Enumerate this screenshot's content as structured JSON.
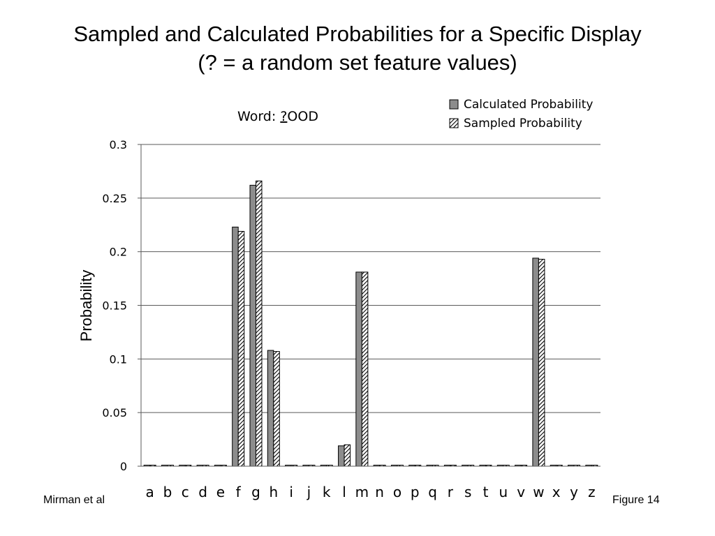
{
  "slide": {
    "title_line1": "Sampled and Calculated Probabilities for a Specific Display",
    "title_line2": "(? = a random set feature values)",
    "footer_left": "Mirman et al",
    "footer_right": "Figure 14"
  },
  "chart_data": {
    "type": "bar",
    "title_prefix": "Word: ",
    "title_marked": "?",
    "title_suffix": "OOD",
    "ylabel": "Probability",
    "xlabel": "",
    "ylim": [
      0,
      0.3
    ],
    "yticks": [
      "0",
      "0.05",
      "0.1",
      "0.15",
      "0.2",
      "0.25",
      "0.3"
    ],
    "ytick_values": [
      0,
      0.05,
      0.1,
      0.15,
      0.2,
      0.25,
      0.3
    ],
    "grid": true,
    "legend_position": "top-right",
    "categories": [
      "a",
      "b",
      "c",
      "d",
      "e",
      "f",
      "g",
      "h",
      "i",
      "j",
      "k",
      "l",
      "m",
      "n",
      "o",
      "p",
      "q",
      "r",
      "s",
      "t",
      "u",
      "v",
      "w",
      "x",
      "y",
      "z"
    ],
    "series": [
      {
        "name": "Calculated Probability",
        "pattern": "solid-gray",
        "values": [
          0.001,
          0.001,
          0.001,
          0.001,
          0.001,
          0.223,
          0.262,
          0.108,
          0.001,
          0.001,
          0.001,
          0.019,
          0.181,
          0.001,
          0.001,
          0.001,
          0.001,
          0.001,
          0.001,
          0.001,
          0.001,
          0.001,
          0.194,
          0.001,
          0.001,
          0.001
        ]
      },
      {
        "name": "Sampled Probability",
        "pattern": "diagonal-hatch",
        "values": [
          0.001,
          0.001,
          0.001,
          0.001,
          0.001,
          0.219,
          0.266,
          0.107,
          0.001,
          0.001,
          0.001,
          0.02,
          0.181,
          0.001,
          0.001,
          0.001,
          0.001,
          0.001,
          0.001,
          0.001,
          0.001,
          0.001,
          0.193,
          0.001,
          0.001,
          0.001
        ]
      }
    ],
    "colors": {
      "calculated_fill": "#8c8c8c",
      "grid": "#5a5a5a",
      "axis": "#5a5a5a"
    }
  }
}
